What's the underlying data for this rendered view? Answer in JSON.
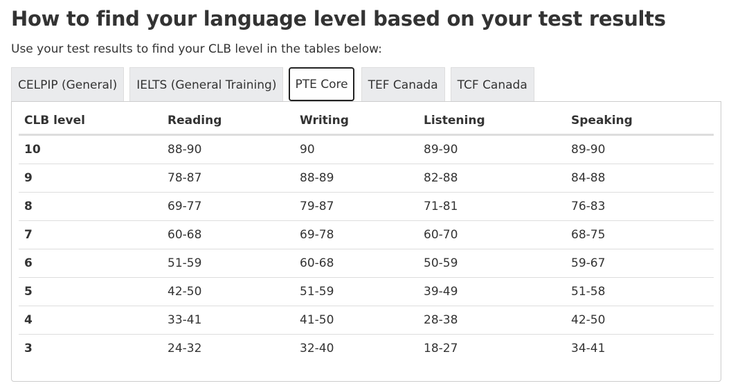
{
  "title": "How to find your language level based on your test results",
  "intro": "Use your test results to find your CLB level in the tables below:",
  "tabs": [
    {
      "label": "CELPIP (General)",
      "active": false
    },
    {
      "label": "IELTS (General Training)",
      "active": false
    },
    {
      "label": "PTE Core",
      "active": true
    },
    {
      "label": "TEF Canada",
      "active": false
    },
    {
      "label": "TCF Canada",
      "active": false
    }
  ],
  "table": {
    "headers": [
      "CLB level",
      "Reading",
      "Writing",
      "Listening",
      "Speaking"
    ],
    "rows": [
      [
        "10",
        "88-90",
        "90",
        "89-90",
        "89-90"
      ],
      [
        "9",
        "78-87",
        "88-89",
        "82-88",
        "84-88"
      ],
      [
        "8",
        "69-77",
        "79-87",
        "71-81",
        "76-83"
      ],
      [
        "7",
        "60-68",
        "69-78",
        "60-70",
        "68-75"
      ],
      [
        "6",
        "51-59",
        "60-68",
        "50-59",
        "59-67"
      ],
      [
        "5",
        "42-50",
        "51-59",
        "39-49",
        "51-58"
      ],
      [
        "4",
        "33-41",
        "41-50",
        "28-38",
        "42-50"
      ],
      [
        "3",
        "24-32",
        "32-40",
        "18-27",
        "34-41"
      ]
    ]
  }
}
